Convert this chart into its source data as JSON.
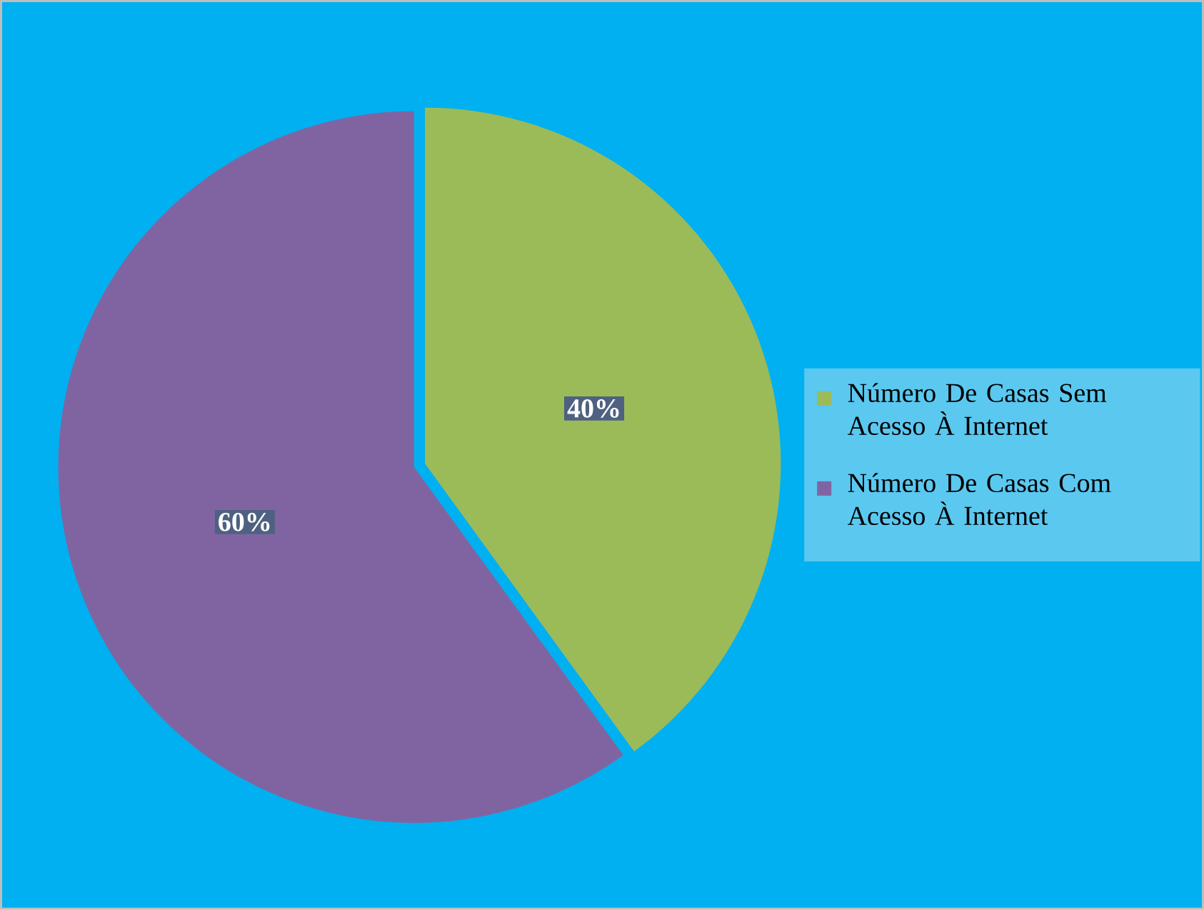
{
  "chart_data": {
    "type": "pie",
    "categories": [
      "Número De Casas Sem Acesso À Internet",
      "Número De Casas Com Acesso À Internet"
    ],
    "values": [
      40,
      60
    ],
    "colors": [
      "#9bbb59",
      "#8064a2"
    ],
    "value_labels": [
      "40%",
      "60%"
    ],
    "legend": "right"
  }
}
